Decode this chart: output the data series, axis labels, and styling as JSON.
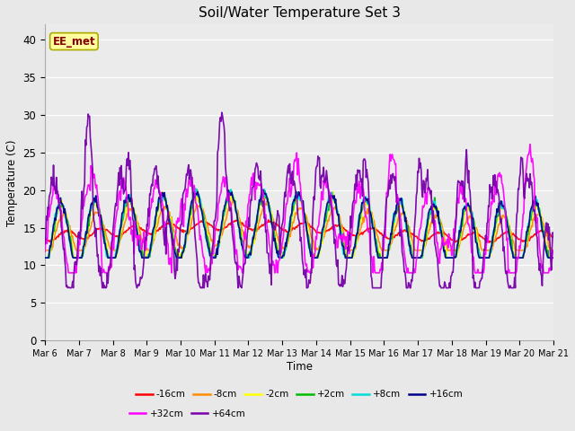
{
  "title": "Soil/Water Temperature Set 3",
  "xlabel": "Time",
  "ylabel": "Temperature (C)",
  "ylim": [
    0,
    42
  ],
  "yticks": [
    0,
    5,
    10,
    15,
    20,
    25,
    30,
    35,
    40
  ],
  "annotation_text": "EE_met",
  "annotation_color": "#8B0000",
  "annotation_bg": "#FFFFA0",
  "annotation_edge": "#AAAA00",
  "x_labels": [
    "Mar 6",
    "Mar 7",
    "Mar 8",
    "Mar 9",
    "Mar 10",
    "Mar 11",
    "Mar 12",
    "Mar 13",
    "Mar 14",
    "Mar 15",
    "Mar 16",
    "Mar 17",
    "Mar 18",
    "Mar 19",
    "Mar 20",
    "Mar 21"
  ],
  "series": [
    {
      "label": "-16cm",
      "color": "#FF0000",
      "lw": 1.2
    },
    {
      "label": "-8cm",
      "color": "#FF8C00",
      "lw": 1.2
    },
    {
      "label": "-2cm",
      "color": "#FFFF00",
      "lw": 1.2
    },
    {
      "label": "+2cm",
      "color": "#00BB00",
      "lw": 1.2
    },
    {
      "label": "+8cm",
      "color": "#00DDDD",
      "lw": 1.2
    },
    {
      "label": "+16cm",
      "color": "#000088",
      "lw": 1.2
    },
    {
      "label": "+32cm",
      "color": "#FF00FF",
      "lw": 1.2
    },
    {
      "label": "+64cm",
      "color": "#7700AA",
      "lw": 1.2
    }
  ],
  "fig_bg": "#E8E8E8",
  "plot_bg": "#EBEBEB",
  "grid_color": "#FFFFFF"
}
